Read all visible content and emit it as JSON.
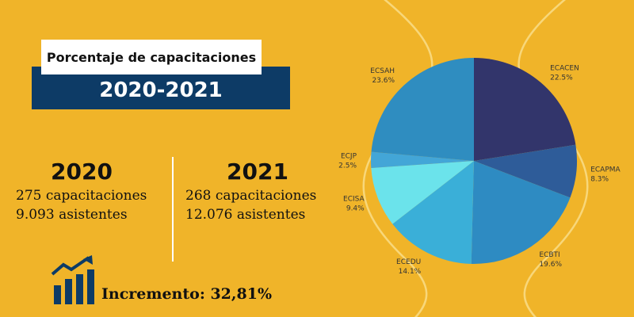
{
  "header": {
    "title": "Porcentaje de capacitaciones",
    "years": "2020-2021"
  },
  "stats": {
    "y2020": {
      "year": "2020",
      "trainings": "275 capacitaciones",
      "attendees": "9.093 asistentes"
    },
    "y2021": {
      "year": "2021",
      "trainings": "268 capacitaciones",
      "attendees": "12.076 asistentes"
    }
  },
  "increase": {
    "label": "Incremento: 32,81%"
  },
  "icons": {
    "growth": "bar-chart-growth-icon"
  },
  "colors": {
    "background": "#F0B429",
    "title_bar": "#0D3B66",
    "deco_line": "#F8D77A",
    "icon": "#0D3B66"
  },
  "chart_data": {
    "type": "pie",
    "title": "",
    "slices": [
      {
        "label": "ECACEN",
        "value": 22.5,
        "display": "22.5%",
        "color": "#32356B"
      },
      {
        "label": "ECAPMA",
        "value": 8.3,
        "display": "8.3%",
        "color": "#2E5C99"
      },
      {
        "label": "ECBTI",
        "value": 19.6,
        "display": "19.6%",
        "color": "#2E8BC2"
      },
      {
        "label": "ECEDU",
        "value": 14.1,
        "display": "14.1%",
        "color": "#3AAFD8"
      },
      {
        "label": "ECISA",
        "value": 9.4,
        "display": "9.4%",
        "color": "#6BE3EB"
      },
      {
        "label": "ECJP",
        "value": 2.5,
        "display": "2.5%",
        "color": "#43A6D7"
      },
      {
        "label": "ECSAH",
        "value": 23.6,
        "display": "23.6%",
        "color": "#2F8DC0"
      }
    ]
  }
}
